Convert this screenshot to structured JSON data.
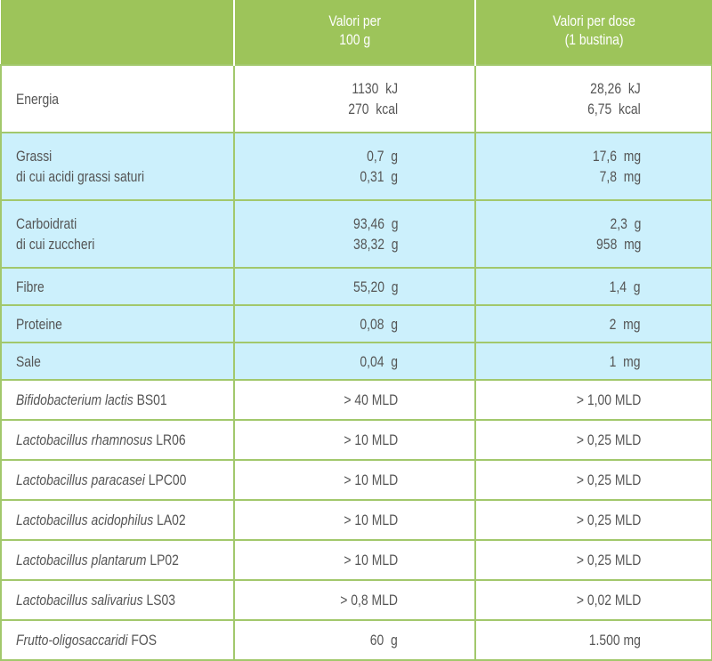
{
  "header": {
    "col1": "",
    "col2_line1": "Valori per",
    "col2_line2": "100 g",
    "col3_line1": "Valori per dose",
    "col3_line2": "(1 bustina)"
  },
  "colors": {
    "header": "#9dc45a",
    "highlight": "#ccf0fc",
    "grid": "#a2c86c",
    "text": "#555555"
  },
  "rows": [
    {
      "label": [
        "Energia",
        ""
      ],
      "v100": [
        "1130  kJ",
        "270  kcal"
      ],
      "vdose": [
        "28,26  kJ",
        "6,75  kcal"
      ]
    },
    {
      "label": [
        "Grassi",
        "di cui acidi grassi saturi"
      ],
      "v100": [
        "0,7  g",
        "0,31  g"
      ],
      "vdose": [
        "17,6  mg",
        "7,8  mg"
      ]
    },
    {
      "label": [
        "Carboidrati",
        "di cui zuccheri"
      ],
      "v100": [
        "93,46  g",
        "38,32  g"
      ],
      "vdose": [
        "2,3  g",
        "958  mg"
      ]
    },
    {
      "label": [
        "Fibre"
      ],
      "v100": [
        "55,20  g"
      ],
      "vdose": [
        "1,4  g"
      ]
    },
    {
      "label": [
        "Proteine"
      ],
      "v100": [
        "0,08  g"
      ],
      "vdose": [
        "2  mg"
      ]
    },
    {
      "label": [
        "Sale"
      ],
      "v100": [
        "0,04  g"
      ],
      "vdose": [
        "1  mg"
      ]
    }
  ],
  "strains": [
    {
      "italic": "Bifidobacterium lactis",
      "code": " BS01",
      "v100": "> 40 MLD",
      "vdose": "> 1,00 MLD"
    },
    {
      "italic": "Lactobacillus rhamnosus",
      "code": " LR06",
      "v100": "> 10 MLD",
      "vdose": "> 0,25 MLD"
    },
    {
      "italic": "Lactobacillus paracasei",
      "code": " LPC00",
      "v100": "> 10 MLD",
      "vdose": "> 0,25 MLD"
    },
    {
      "italic": "Lactobacillus acidophilus",
      "code": " LA02",
      "v100": "> 10 MLD",
      "vdose": "> 0,25 MLD"
    },
    {
      "italic": "Lactobacillus plantarum",
      "code": " LP02",
      "v100": "> 10 MLD",
      "vdose": "> 0,25 MLD"
    },
    {
      "italic": "Lactobacillus salivarius",
      "code": " LS03",
      "v100": "> 0,8 MLD",
      "vdose": "> 0,02 MLD"
    },
    {
      "italic": "Frutto-oligosaccaridi",
      "code": " FOS",
      "v100": "60  g",
      "vdose": "1.500 mg"
    }
  ]
}
